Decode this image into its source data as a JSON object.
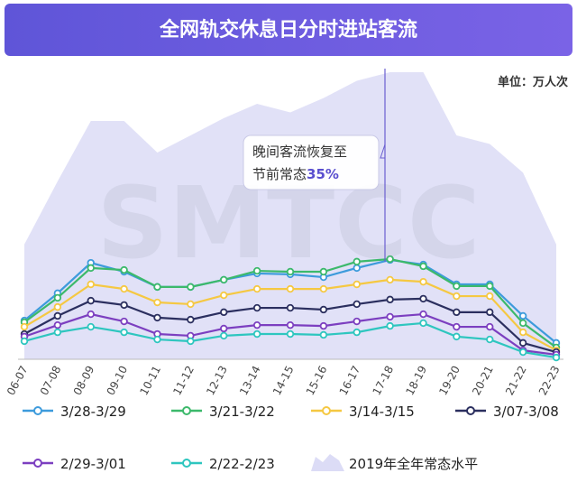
{
  "chart_data": {
    "type": "line",
    "title": "全网轨交休息日分时进站客流",
    "unit_label": "单位：万人次",
    "watermark": "SMTCC",
    "annotation": {
      "lines": [
        "晚间客流恢复至",
        "节前常态"
      ],
      "highlight": "35%"
    },
    "categories": [
      "06-07",
      "07-08",
      "08-09",
      "09-10",
      "10-11",
      "11-12",
      "12-13",
      "13-14",
      "14-15",
      "15-16",
      "16-17",
      "17-18",
      "18-19",
      "19-20",
      "20-21",
      "21-22",
      "22-23"
    ],
    "ylim": [
      0,
      100
    ],
    "area": {
      "name": "2019年全年常态水平",
      "color": "#dcdcf6",
      "values": [
        40,
        62,
        83,
        83,
        72,
        78,
        84,
        89,
        86,
        91,
        97,
        100,
        100,
        78,
        75,
        65,
        40
      ]
    },
    "series": [
      {
        "name": "3/28-3/29",
        "color": "#3d9bdc",
        "values": [
          13.5,
          23,
          33.6,
          30.5,
          25.2,
          25.2,
          27.7,
          29.9,
          29.6,
          28.6,
          31.8,
          34.6,
          33,
          26.1,
          26.1,
          15.1,
          5.7
        ]
      },
      {
        "name": "3/21-3/22",
        "color": "#3cb96b",
        "values": [
          12.9,
          21.4,
          31.8,
          31.1,
          25.2,
          25.2,
          27.7,
          30.8,
          30.5,
          30.5,
          34,
          34.9,
          32.4,
          25.5,
          25.5,
          12.6,
          4.1
        ]
      },
      {
        "name": "3/14-3/15",
        "color": "#f5c842",
        "values": [
          11.3,
          18.2,
          26.1,
          24.5,
          19.8,
          19.2,
          22.3,
          24.5,
          24.5,
          24.5,
          26.1,
          27.7,
          27,
          22,
          22,
          9.4,
          3.1
        ]
      },
      {
        "name": "3/07-3/08",
        "color": "#2b2f5f",
        "values": [
          8.8,
          15.1,
          20.4,
          18.9,
          14.5,
          13.8,
          16.4,
          17.9,
          17.9,
          17.3,
          19.2,
          20.8,
          21.1,
          16.4,
          16.4,
          5.7,
          2.5
        ]
      },
      {
        "name": "2/29-3/01",
        "color": "#7c3fc0",
        "values": [
          7.9,
          11.9,
          15.7,
          13.2,
          8.8,
          8.2,
          10.7,
          11.9,
          11.9,
          11.6,
          13.2,
          14.8,
          15.7,
          11.3,
          11.3,
          3.1,
          1.6
        ]
      },
      {
        "name": "2/22-2/23",
        "color": "#2ec6bf",
        "values": [
          6.3,
          9.4,
          11.3,
          9.4,
          6.9,
          6.3,
          8.2,
          8.8,
          8.8,
          8.5,
          9.4,
          11.6,
          12.6,
          7.9,
          6.9,
          2.5,
          0.6
        ]
      }
    ]
  }
}
